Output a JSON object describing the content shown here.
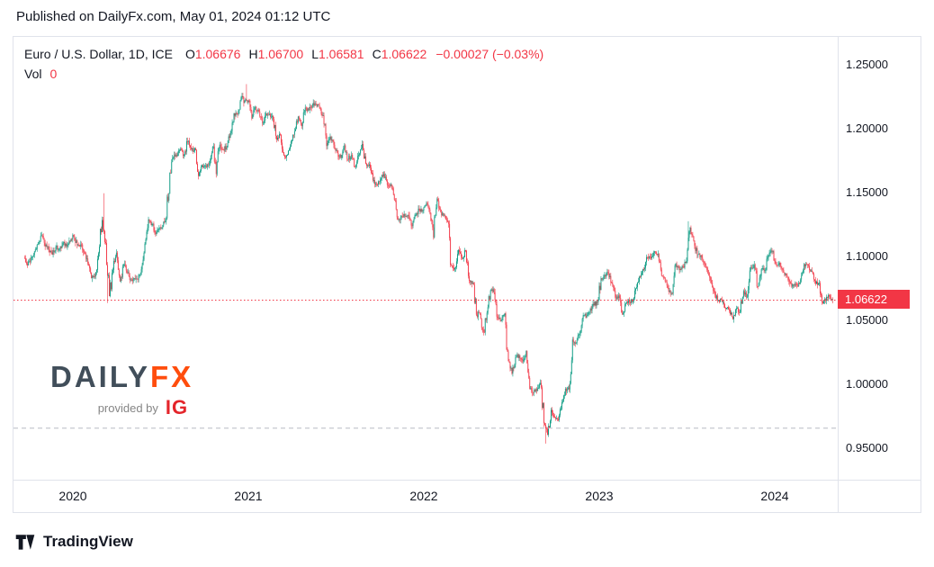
{
  "publish_line": "Published on DailyFx.com, May 01, 2024 01:12 UTC",
  "legend": {
    "title": "Euro / U.S. Dollar, 1D, ICE",
    "ohlc": [
      {
        "k": "O",
        "v": "1.06676"
      },
      {
        "k": "H",
        "v": "1.06700"
      },
      {
        "k": "L",
        "v": "1.06581"
      },
      {
        "k": "C",
        "v": "1.06622"
      }
    ],
    "change": "−0.00027 (−0.03%)",
    "vol_label": "Vol",
    "vol_value": "0"
  },
  "watermark": {
    "brand_1": "DAILY",
    "brand_2": "FX",
    "provided_by": "provided by",
    "provider": "IG"
  },
  "footer": {
    "brand": "TradingView"
  },
  "chart_data": {
    "type": "candlestick",
    "title": "Euro / U.S. Dollar, 1D, ICE",
    "pair": "EUR/USD",
    "interval": "1D",
    "exchange": "ICE",
    "ohlc_last": {
      "open": 1.06676,
      "high": 1.067,
      "low": 1.06581,
      "close": 1.06622,
      "change": -0.00027,
      "change_pct": "−0.03%"
    },
    "last_price": 1.06622,
    "last_price_label": "1.06622",
    "level_line": 0.966,
    "y_ticks": [
      {
        "v": 1.25,
        "label": "1.25000"
      },
      {
        "v": 1.2,
        "label": "1.20000"
      },
      {
        "v": 1.15,
        "label": "1.15000"
      },
      {
        "v": 1.1,
        "label": "1.10000"
      },
      {
        "v": 1.05,
        "label": "1.05000"
      },
      {
        "v": 1.0,
        "label": "1.00000"
      },
      {
        "v": 0.95,
        "label": "0.95000"
      }
    ],
    "x_years": [
      "2020",
      "2021",
      "2022",
      "2023",
      "2024"
    ],
    "time_range": [
      2019.72,
      2024.33
    ],
    "colors": {
      "up": "#089981",
      "down": "#F23645",
      "last_line": "#F23645",
      "level": "#B8BBC4"
    },
    "weekly_closes": [
      1.099,
      1.093,
      1.0985,
      1.104,
      1.11,
      1.1165,
      1.108,
      1.1055,
      1.1015,
      1.1075,
      1.106,
      1.1105,
      1.108,
      1.112,
      1.116,
      1.109,
      1.1095,
      1.1025,
      1.0945,
      1.083,
      1.0845,
      1.1025,
      1.1285,
      1.1105,
      1.069,
      1.0895,
      1.103,
      1.0805,
      1.0935,
      1.0875,
      1.082,
      1.083,
      1.082,
      1.09,
      1.11,
      1.129,
      1.1255,
      1.1175,
      1.122,
      1.1245,
      1.13,
      1.1655,
      1.178,
      1.1785,
      1.184,
      1.1795,
      1.19,
      1.184,
      1.1845,
      1.163,
      1.1715,
      1.171,
      1.172,
      1.186,
      1.1645,
      1.1875,
      1.1835,
      1.1855,
      1.1965,
      1.212,
      1.2115,
      1.2245,
      1.2215,
      1.222,
      1.208,
      1.217,
      1.2135,
      1.2045,
      1.212,
      1.2115,
      1.2075,
      1.1915,
      1.1955,
      1.179,
      1.1795,
      1.19,
      1.198,
      1.2095,
      1.202,
      1.2165,
      1.2145,
      1.218,
      1.219,
      1.2165,
      1.2105,
      1.1865,
      1.1935,
      1.1875,
      1.181,
      1.177,
      1.187,
      1.176,
      1.1795,
      1.17,
      1.1795,
      1.188,
      1.1725,
      1.172,
      1.1595,
      1.1565,
      1.16,
      1.1645,
      1.156,
      1.1565,
      1.1445,
      1.129,
      1.1315,
      1.1315,
      1.132,
      1.124,
      1.1325,
      1.137,
      1.136,
      1.1415,
      1.134,
      1.115,
      1.145,
      1.135,
      1.132,
      1.127,
      1.093,
      1.091,
      1.105,
      1.0985,
      1.1045,
      1.081,
      1.0795,
      1.0545,
      1.055,
      1.041,
      1.056,
      1.0735,
      1.072,
      1.052,
      1.05,
      1.0555,
      1.018,
      1.0085,
      1.021,
      1.0225,
      1.018,
      1.026,
      0.9965,
      0.9935,
      0.995,
      1.001,
      0.9695,
      0.9605,
      0.98,
      0.974,
      0.972,
      0.986,
      0.9965,
      0.996,
      1.035,
      1.0325,
      1.04,
      1.054,
      1.0535,
      1.059,
      1.062,
      1.0645,
      1.083,
      1.0855,
      1.087,
      1.0795,
      1.068,
      1.0695,
      1.0545,
      1.0635,
      1.0645,
      1.0665,
      1.076,
      1.084,
      1.09,
      1.0995,
      1.0985,
      1.104,
      1.102,
      1.085,
      1.0805,
      1.0725,
      1.071,
      1.094,
      1.0895,
      1.092,
      1.0965,
      1.1225,
      1.1125,
      1.1015,
      1.101,
      1.0945,
      1.087,
      1.0795,
      1.07,
      1.066,
      1.0645,
      1.059,
      1.0585,
      1.051,
      1.0595,
      1.0565,
      1.073,
      1.0685,
      1.0915,
      1.0935,
      1.0765,
      1.09,
      1.0895,
      1.101,
      1.104,
      1.0945,
      1.095,
      1.0895,
      1.0855,
      1.079,
      1.078,
      1.0775,
      1.082,
      1.094,
      1.0935,
      1.089,
      1.081,
      1.079,
      1.0645,
      1.0655,
      1.0695,
      1.0662
    ],
    "extremes": [
      {
        "i": 23,
        "h": 1.1495
      },
      {
        "i": 24,
        "l": 1.0636
      },
      {
        "i": 63,
        "h": 1.2349
      },
      {
        "i": 147,
        "l": 0.9536
      },
      {
        "i": 187,
        "h": 1.1276
      }
    ]
  }
}
